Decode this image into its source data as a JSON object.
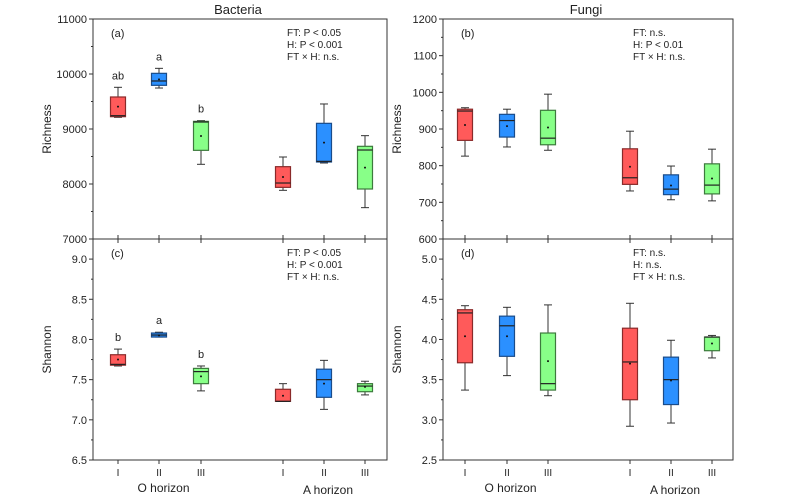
{
  "chart_data": [
    {
      "type": "box",
      "panel_label": "(a)",
      "title": "Bacteria",
      "ylabel": "Richness",
      "ylim": [
        7000,
        11000
      ],
      "yticks": [
        7000,
        8000,
        9000,
        10000,
        11000
      ],
      "tick_labels": [
        "7000",
        "8000",
        "9000",
        "10000",
        "11000"
      ],
      "categories": [
        "I",
        "II",
        "III",
        "I",
        "II",
        "III"
      ],
      "groups": [
        "O horizon",
        "A horizon"
      ],
      "stats": [
        "FT: P < 0.05",
        "H: P < 0.001",
        "FT × H: n.s."
      ],
      "letters": [
        "ab",
        "a",
        "b",
        "",
        "",
        ""
      ],
      "boxes": [
        {
          "whisker_low": 9212,
          "q1": 9224,
          "median": 9242,
          "q3": 9582,
          "whisker_high": 9758,
          "mean": 9406
        },
        {
          "whisker_low": 9745,
          "q1": 9794,
          "median": 9873,
          "q3": 10012,
          "whisker_high": 10103,
          "mean": 9903
        },
        {
          "whisker_low": 8358,
          "q1": 8612,
          "median": 9127,
          "q3": 9139,
          "whisker_high": 9152,
          "mean": 8873
        },
        {
          "whisker_low": 7885,
          "q1": 7939,
          "median": 8018,
          "q3": 8315,
          "whisker_high": 8491,
          "mean": 8127
        },
        {
          "whisker_low": 8382,
          "q1": 8400,
          "median": 8412,
          "q3": 9103,
          "whisker_high": 9455,
          "mean": 8752
        },
        {
          "whisker_low": 7570,
          "q1": 7909,
          "median": 8618,
          "q3": 8685,
          "whisker_high": 8879,
          "mean": 8297
        }
      ]
    },
    {
      "type": "box",
      "panel_label": "(b)",
      "title": "Fungi",
      "ylabel": "Richness",
      "ylim": [
        600,
        1200
      ],
      "yticks": [
        600,
        700,
        800,
        900,
        1000,
        1100,
        1200
      ],
      "tick_labels": [
        "600",
        "700",
        "800",
        "900",
        "1000",
        "1100",
        "1200"
      ],
      "categories": [
        "I",
        "II",
        "III",
        "I",
        "II",
        "III"
      ],
      "groups": [
        "O horizon",
        "A horizon"
      ],
      "stats": [
        "FT: n.s.",
        "H: P < 0.01",
        "FT × H: n.s."
      ],
      "letters": [
        "",
        "",
        "",
        "",
        "",
        ""
      ],
      "boxes": [
        {
          "whisker_low": 826,
          "q1": 869,
          "median": 949,
          "q3": 954,
          "whisker_high": 958,
          "mean": 911
        },
        {
          "whisker_low": 851,
          "q1": 878,
          "median": 923,
          "q3": 940,
          "whisker_high": 954,
          "mean": 908
        },
        {
          "whisker_low": 842,
          "q1": 857,
          "median": 875,
          "q3": 951,
          "whisker_high": 995,
          "mean": 904
        },
        {
          "whisker_low": 731,
          "q1": 749,
          "median": 767,
          "q3": 846,
          "whisker_high": 894,
          "mean": 797
        },
        {
          "whisker_low": 707,
          "q1": 721,
          "median": 736,
          "q3": 775,
          "whisker_high": 799,
          "mean": 746
        },
        {
          "whisker_low": 704,
          "q1": 723,
          "median": 747,
          "q3": 805,
          "whisker_high": 845,
          "mean": 765
        }
      ]
    },
    {
      "type": "box",
      "panel_label": "(c)",
      "title": "",
      "ylabel": "Shannon",
      "ylim": [
        6.5,
        9.25
      ],
      "yticks": [
        6.5,
        7.0,
        7.5,
        8.0,
        8.5,
        9.0
      ],
      "tick_labels": [
        "6.5",
        "7.0",
        "7.5",
        "8.0",
        "8.5",
        "9.0"
      ],
      "categories": [
        "I",
        "II",
        "III",
        "I",
        "II",
        "III"
      ],
      "groups": [
        "O horizon",
        "A horizon"
      ],
      "stats": [
        "FT: P < 0.05",
        "H: P < 0.001",
        "FT × H: n.s."
      ],
      "letters": [
        "b",
        "a",
        "b",
        "",
        "",
        ""
      ],
      "boxes": [
        {
          "whisker_low": 7.67,
          "q1": 7.68,
          "median": 7.69,
          "q3": 7.81,
          "whisker_high": 7.88,
          "mean": 7.75
        },
        {
          "whisker_low": 8.03,
          "q1": 8.03,
          "median": 8.055,
          "q3": 8.08,
          "whisker_high": 8.09,
          "mean": 8.05
        },
        {
          "whisker_low": 7.36,
          "q1": 7.45,
          "median": 7.6,
          "q3": 7.64,
          "whisker_high": 7.67,
          "mean": 7.54
        },
        {
          "whisker_low": 7.23,
          "q1": 7.23,
          "median": 7.23,
          "q3": 7.38,
          "whisker_high": 7.45,
          "mean": 7.3
        },
        {
          "whisker_low": 7.13,
          "q1": 7.28,
          "median": 7.5,
          "q3": 7.63,
          "whisker_high": 7.74,
          "mean": 7.45
        },
        {
          "whisker_low": 7.31,
          "q1": 7.35,
          "median": 7.42,
          "q3": 7.45,
          "whisker_high": 7.48,
          "mean": 7.41
        }
      ]
    },
    {
      "type": "box",
      "panel_label": "(d)",
      "title": "",
      "ylabel": "Shannon",
      "ylim": [
        2.5,
        5.25
      ],
      "yticks": [
        2.5,
        3.0,
        3.5,
        4.0,
        4.5,
        5.0
      ],
      "tick_labels": [
        "2.5",
        "3.0",
        "3.5",
        "4.0",
        "4.5",
        "5.0"
      ],
      "categories": [
        "I",
        "II",
        "III",
        "I",
        "II",
        "III"
      ],
      "groups": [
        "O horizon",
        "A horizon"
      ],
      "stats": [
        "FT: n.s.",
        "H: n.s.",
        "FT × H: n.s."
      ],
      "letters": [
        "",
        "",
        "",
        "",
        "",
        ""
      ],
      "boxes": [
        {
          "whisker_low": 3.37,
          "q1": 3.71,
          "median": 4.33,
          "q3": 4.37,
          "whisker_high": 4.42,
          "mean": 4.04
        },
        {
          "whisker_low": 3.55,
          "q1": 3.79,
          "median": 4.17,
          "q3": 4.29,
          "whisker_high": 4.4,
          "mean": 4.04
        },
        {
          "whisker_low": 3.3,
          "q1": 3.37,
          "median": 3.45,
          "q3": 4.08,
          "whisker_high": 4.43,
          "mean": 3.73
        },
        {
          "whisker_low": 2.92,
          "q1": 3.25,
          "median": 3.72,
          "q3": 4.14,
          "whisker_high": 4.45,
          "mean": 3.7
        },
        {
          "whisker_low": 2.96,
          "q1": 3.19,
          "median": 3.5,
          "q3": 3.78,
          "whisker_high": 3.99,
          "mean": 3.49
        },
        {
          "whisker_low": 3.77,
          "q1": 3.86,
          "median": 4.03,
          "q3": 4.03,
          "whisker_high": 4.05,
          "mean": 3.95
        }
      ]
    }
  ],
  "colors": {
    "fill": [
      "#ff5a5a",
      "#2b90ff",
      "#88ff88",
      "#ff5a5a",
      "#2b90ff",
      "#88ff88"
    ],
    "edge": [
      "#8a2a2a",
      "#1a4c8a",
      "#3d7a3d",
      "#8a2a2a",
      "#1a4c8a",
      "#3d7a3d"
    ],
    "axis": "#333333"
  }
}
